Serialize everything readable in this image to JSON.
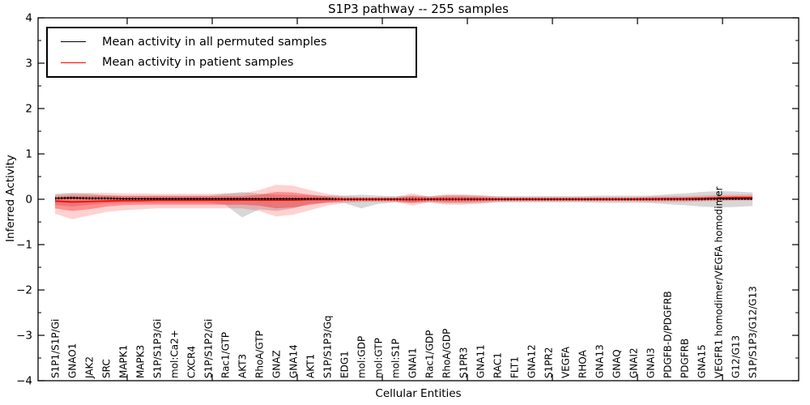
{
  "title": "S1P3 pathway -- 255 samples",
  "legend": {
    "items": [
      {
        "label": "Mean activity in all permuted samples",
        "color": "#000000"
      },
      {
        "label": "Mean activity in patient samples",
        "color": "#ff0000"
      }
    ]
  },
  "axes": {
    "xlabel": "Cellular Entities",
    "ylabel": "Inferred Activity",
    "yticks": [
      4,
      3,
      2,
      1,
      0,
      -1,
      -2,
      -3,
      -4
    ]
  },
  "colors": {
    "permuted_line": "#000000",
    "patient_line": "#ff0000",
    "permuted_band": "rgba(130,130,130,0.32)",
    "patient_band_outer": "rgba(255,0,0,0.18)",
    "patient_band_inner": "rgba(255,0,0,0.32)",
    "frame": "#000000"
  },
  "chart_data": {
    "type": "line",
    "title": "S1P3 pathway -- 255 samples",
    "xlabel": "Cellular Entities",
    "ylabel": "Inferred Activity",
    "ylim": [
      -4,
      4
    ],
    "y_major_step": 1,
    "y_minor_step": 0.5,
    "grid": false,
    "legend_position": "upper left",
    "x_major_tick_indices": [
      4,
      9,
      14,
      19,
      24,
      29,
      34,
      39
    ],
    "categories": [
      "S1P1/S1P/Gi",
      "GNAO1",
      "JAK2",
      "SRC",
      "MAPK1",
      "MAPK3",
      "S1P/S1P3/Gi",
      "mol:Ca2+",
      "CXCR4",
      "S1P/S1P2/Gi",
      "Rac1/GTP",
      "AKT3",
      "RhoA/GTP",
      "GNAZ",
      "GNA14",
      "AKT1",
      "S1P/S1P3/Gq",
      "EDG1",
      "mol:GDP",
      "mol:GTP",
      "mol:S1P",
      "GNAI1",
      "Rac1/GDP",
      "RhoA/GDP",
      "S1PR3",
      "GNA11",
      "RAC1",
      "FLT1",
      "GNA12",
      "S1PR2",
      "VEGFA",
      "RHOA",
      "GNA13",
      "GNAQ",
      "GNAI2",
      "GNAI3",
      "PDGFB-D/PDGFRB",
      "PDGFRB",
      "GNA15",
      "VEGFR1 homodimer/VEGFA homodimer",
      "G12/G13",
      "S1P/S1P3/G12/G13"
    ],
    "series": [
      {
        "name": "Mean activity in all permuted samples",
        "color": "#000000",
        "style": "dashed",
        "values": [
          0.02,
          0.03,
          0.02,
          0.02,
          0.01,
          0.01,
          0.01,
          0.01,
          0.01,
          0.01,
          0.01,
          0.01,
          0.01,
          0.01,
          0.01,
          0.01,
          0.01,
          0.0,
          0.0,
          0.0,
          0.0,
          0.0,
          0.0,
          0.0,
          0.0,
          0.0,
          0.0,
          0.0,
          0.0,
          0.0,
          0.0,
          0.0,
          0.0,
          0.0,
          0.0,
          0.0,
          0.0,
          0.0,
          0.0,
          0.01,
          0.01,
          0.01
        ]
      },
      {
        "name": "Mean activity in patient samples",
        "color": "#ff0000",
        "style": "solid",
        "values": [
          -0.04,
          -0.06,
          -0.05,
          -0.04,
          -0.03,
          -0.03,
          -0.02,
          -0.02,
          -0.02,
          -0.02,
          -0.02,
          -0.02,
          -0.02,
          -0.02,
          -0.02,
          -0.01,
          -0.01,
          0.0,
          0.0,
          0.0,
          0.0,
          -0.01,
          0.0,
          0.0,
          0.0,
          0.0,
          0.0,
          0.0,
          0.0,
          0.0,
          0.0,
          0.0,
          0.0,
          0.0,
          0.0,
          0.0,
          0.01,
          0.01,
          0.02,
          0.03,
          0.04,
          0.04
        ]
      }
    ],
    "bands": [
      {
        "name": "permuted-range",
        "colorKey": "permuted_band",
        "upper": [
          0.12,
          0.14,
          0.12,
          0.09,
          0.08,
          0.08,
          0.08,
          0.08,
          0.08,
          0.08,
          0.12,
          0.16,
          0.12,
          0.1,
          0.09,
          0.08,
          0.08,
          0.08,
          0.1,
          0.08,
          0.07,
          0.08,
          0.07,
          0.09,
          0.09,
          0.08,
          0.07,
          0.07,
          0.07,
          0.07,
          0.07,
          0.07,
          0.08,
          0.08,
          0.08,
          0.08,
          0.11,
          0.13,
          0.16,
          0.18,
          0.17,
          0.15
        ],
        "lower": [
          -0.12,
          -0.16,
          -0.12,
          -0.09,
          -0.08,
          -0.08,
          -0.08,
          -0.08,
          -0.08,
          -0.08,
          -0.12,
          -0.4,
          -0.22,
          -0.26,
          -0.2,
          -0.1,
          -0.08,
          -0.08,
          -0.2,
          -0.1,
          -0.07,
          -0.08,
          -0.07,
          -0.09,
          -0.09,
          -0.08,
          -0.07,
          -0.07,
          -0.07,
          -0.07,
          -0.07,
          -0.07,
          -0.08,
          -0.08,
          -0.08,
          -0.08,
          -0.11,
          -0.13,
          -0.16,
          -0.18,
          -0.17,
          -0.15
        ]
      },
      {
        "name": "patient-range-outer",
        "colorKey": "patient_band_outer",
        "upper": [
          0.1,
          0.13,
          0.14,
          0.14,
          0.13,
          0.13,
          0.12,
          0.12,
          0.12,
          0.12,
          0.13,
          0.13,
          0.2,
          0.32,
          0.3,
          0.2,
          0.12,
          0.07,
          0.05,
          0.05,
          0.05,
          0.13,
          0.06,
          0.11,
          0.11,
          0.09,
          0.06,
          0.05,
          0.05,
          0.05,
          0.05,
          0.05,
          0.05,
          0.05,
          0.05,
          0.06,
          0.07,
          0.07,
          0.08,
          0.1,
          0.1,
          0.1
        ],
        "lower": [
          -0.32,
          -0.44,
          -0.36,
          -0.28,
          -0.24,
          -0.22,
          -0.2,
          -0.2,
          -0.2,
          -0.2,
          -0.2,
          -0.2,
          -0.26,
          -0.38,
          -0.34,
          -0.24,
          -0.14,
          -0.08,
          -0.06,
          -0.06,
          -0.06,
          -0.14,
          -0.07,
          -0.12,
          -0.12,
          -0.1,
          -0.06,
          -0.05,
          -0.05,
          -0.05,
          -0.05,
          -0.05,
          -0.05,
          -0.05,
          -0.05,
          -0.06,
          -0.06,
          -0.06,
          -0.05,
          -0.04,
          -0.03,
          -0.03
        ]
      },
      {
        "name": "patient-range-inner",
        "colorKey": "patient_band_inner",
        "upper": [
          0.06,
          0.08,
          0.08,
          0.08,
          0.07,
          0.07,
          0.07,
          0.07,
          0.07,
          0.07,
          0.07,
          0.07,
          0.1,
          0.16,
          0.15,
          0.1,
          0.06,
          0.03,
          0.03,
          0.03,
          0.03,
          0.07,
          0.04,
          0.06,
          0.06,
          0.05,
          0.03,
          0.03,
          0.03,
          0.03,
          0.03,
          0.03,
          0.03,
          0.03,
          0.03,
          0.04,
          0.04,
          0.04,
          0.05,
          0.06,
          0.06,
          0.06
        ],
        "lower": [
          -0.2,
          -0.26,
          -0.22,
          -0.16,
          -0.13,
          -0.12,
          -0.12,
          -0.12,
          -0.12,
          -0.12,
          -0.12,
          -0.12,
          -0.14,
          -0.2,
          -0.18,
          -0.12,
          -0.07,
          -0.04,
          -0.04,
          -0.04,
          -0.04,
          -0.08,
          -0.04,
          -0.06,
          -0.06,
          -0.05,
          -0.03,
          -0.03,
          -0.03,
          -0.03,
          -0.03,
          -0.03,
          -0.03,
          -0.03,
          -0.03,
          -0.03,
          -0.03,
          -0.03,
          -0.02,
          -0.02,
          -0.02,
          -0.02
        ]
      }
    ]
  }
}
